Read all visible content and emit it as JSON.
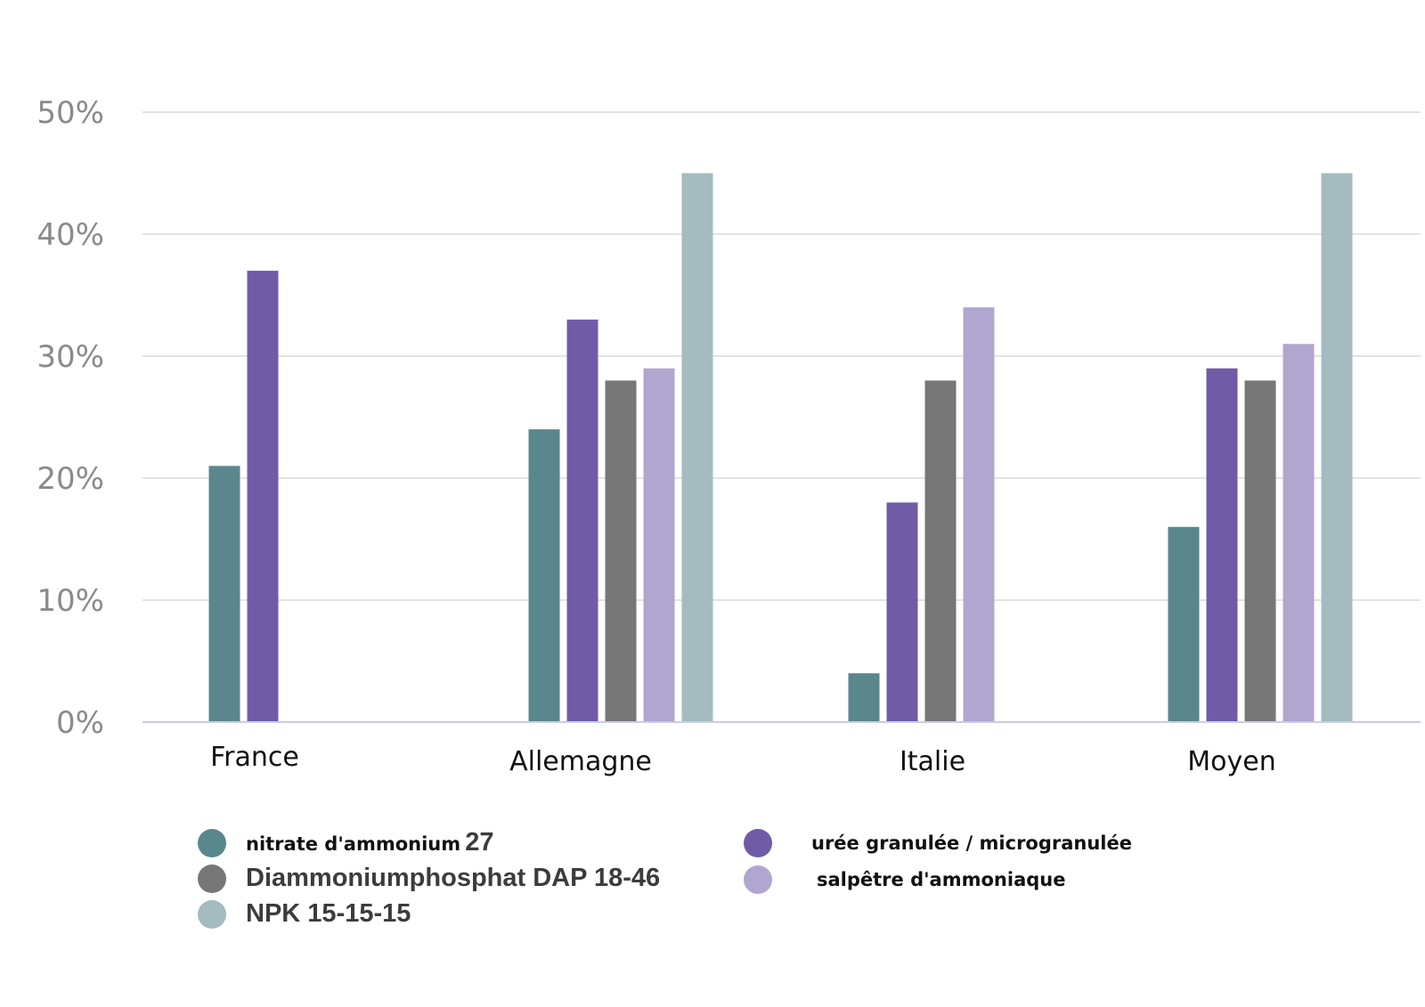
{
  "chart_data": {
    "type": "bar",
    "title": "",
    "xlabel": "",
    "ylabel": "",
    "categories": [
      "France",
      "Allemagne",
      "Italie",
      "Moyen"
    ],
    "yticks": [
      "0%",
      "10%",
      "20%",
      "30%",
      "40%",
      "50%"
    ],
    "ylim": [
      0,
      50
    ],
    "grid": true,
    "legend_position": "bottom",
    "series": [
      {
        "name": "nitrate d'ammonium 27",
        "color": "#5a878c",
        "values": [
          21,
          24,
          4,
          16
        ]
      },
      {
        "name": "urée granulée / microgranulée",
        "color": "#705ca6",
        "values": [
          37,
          33,
          18,
          29
        ]
      },
      {
        "name": "Diammoniumphosphat DAP 18-46",
        "color": "#767676",
        "values": [
          null,
          28,
          28,
          28
        ]
      },
      {
        "name": "salpêtre d'ammoniaque",
        "color": "#b0a6d0",
        "values": [
          null,
          29,
          34,
          31
        ]
      },
      {
        "name": "NPK 15-15-15",
        "color": "#a4bbc0",
        "values": [
          null,
          45,
          null,
          45
        ]
      }
    ]
  },
  "legend": {
    "items": [
      {
        "label_main": "nitrate d'ammonium",
        "label_suffix": "27",
        "color": "#5a878c"
      },
      {
        "label_main": "urée granulée / microgranulée",
        "label_suffix": "",
        "color": "#705ca6"
      },
      {
        "label_main": "Diammoniumphosphat DAP 18-46",
        "label_suffix": "",
        "color": "#767676"
      },
      {
        "label_main": "salpêtre d'ammoniaque",
        "label_suffix": "",
        "color": "#b0a6d0"
      },
      {
        "label_main": "NPK 15-15-15",
        "label_suffix": "",
        "color": "#a4bbc0"
      }
    ]
  }
}
